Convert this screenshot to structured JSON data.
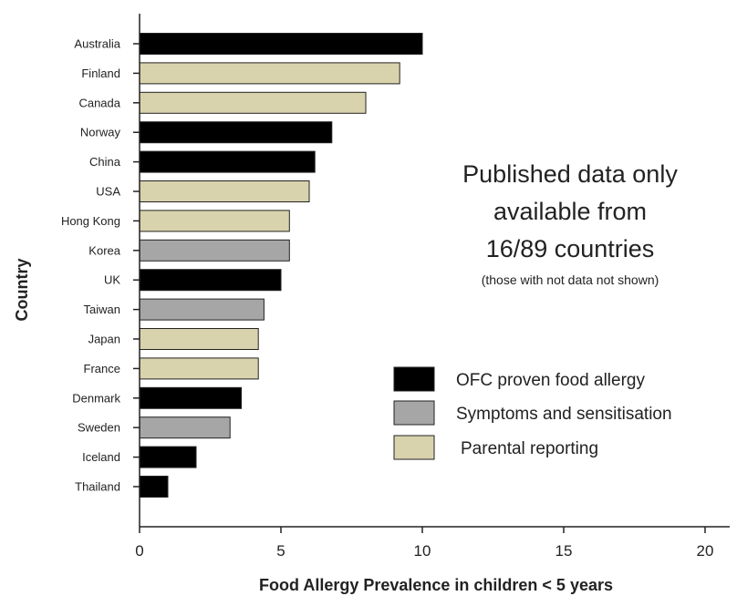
{
  "chart_data": {
    "type": "bar",
    "orientation": "horizontal",
    "xlabel": "Food Allergy Prevalence in children < 5 years",
    "ylabel": "Country",
    "xlim": [
      0,
      21
    ],
    "xticks": [
      0,
      5,
      10,
      15,
      20
    ],
    "grid": false,
    "categories": [
      "Australia",
      "Finland",
      "Canada",
      "Norway",
      "China",
      "USA",
      "Hong Kong",
      "Korea",
      "UK",
      "Taiwan",
      "Japan",
      "France",
      "Denmark",
      "Sweden",
      "Iceland",
      "Thailand"
    ],
    "values": [
      10.0,
      9.2,
      8.0,
      6.8,
      6.2,
      6.0,
      5.3,
      5.3,
      5.0,
      4.4,
      4.2,
      4.2,
      3.6,
      3.2,
      2.0,
      1.0
    ],
    "groups": [
      "OFC proven food allergy",
      "Parental reporting",
      "Parental reporting",
      "OFC proven food allergy",
      "OFC proven food allergy",
      "Parental reporting",
      "Parental reporting",
      "Symptoms and sensitisation",
      "OFC proven food allergy",
      "Symptoms and sensitisation",
      "Parental reporting",
      "Parental reporting",
      "OFC proven food allergy",
      "Symptoms and sensitisation",
      "OFC proven food allergy",
      "OFC proven food allergy"
    ],
    "legend": {
      "position": "right",
      "entries": [
        {
          "label": "OFC proven food allergy",
          "color": "#000000"
        },
        {
          "label": "Symptoms and sensitisation",
          "color": "#a6a6a6"
        },
        {
          "label": "Parental reporting",
          "color": "#d9d3ad"
        }
      ]
    },
    "annotation": {
      "lines": [
        "Published data only",
        "available from",
        "16/89 countries"
      ],
      "note": "(those with not data not shown)"
    }
  }
}
